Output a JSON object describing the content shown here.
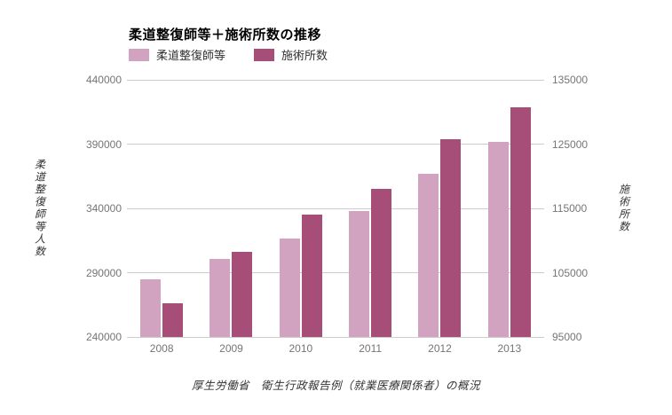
{
  "chart_data": {
    "type": "bar",
    "title": "柔道整復師等＋施術所数の推移",
    "source_caption": "厚生労働省　衛生行政報告例（就業医療関係者）の概況",
    "categories": [
      "2008",
      "2009",
      "2010",
      "2011",
      "2012",
      "2013"
    ],
    "series": [
      {
        "name": "柔道整復師等",
        "axis": "left",
        "color": "#d1a3c0",
        "values": [
          285000,
          301000,
          316500,
          338000,
          367200,
          391500
        ]
      },
      {
        "name": "施術所数",
        "axis": "right",
        "color": "#a64d78",
        "values": [
          100200,
          108200,
          114100,
          118000,
          125700,
          130700
        ]
      }
    ],
    "left_axis": {
      "title": "柔道整復師等人数",
      "min": 240000,
      "max": 440000,
      "ticks": [
        240000,
        290000,
        340000,
        390000,
        440000
      ]
    },
    "right_axis": {
      "title": "施術所数",
      "min": 95000,
      "max": 135000,
      "ticks": [
        95000,
        105000,
        115000,
        125000,
        135000
      ]
    },
    "grid": true,
    "legend_position": "top-left",
    "colors": {
      "gridline": "#cccccc",
      "tick_label": "#757575",
      "title": "#000000",
      "legend_label": "#333333",
      "caption": "#333333",
      "background": "#ffffff"
    }
  }
}
